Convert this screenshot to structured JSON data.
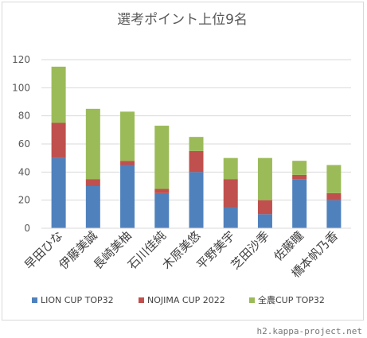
{
  "chart_data": {
    "type": "bar",
    "stacked": true,
    "title": "選考ポイント上位9名",
    "categories": [
      "早田ひな",
      "伊藤美誠",
      "長崎美柚",
      "石川佳純",
      "木原美悠",
      "平野美宇",
      "芝田沙季",
      "佐藤瞳",
      "橋本帆乃香"
    ],
    "series": [
      {
        "name": "LION CUP TOP32",
        "color": "#4f81bd",
        "values": [
          50,
          30,
          45,
          25,
          40,
          15,
          10,
          35,
          20
        ]
      },
      {
        "name": "NOJIMA CUP 2022",
        "color": "#c0504d",
        "values": [
          25,
          5,
          3,
          3,
          15,
          20,
          10,
          3,
          5
        ]
      },
      {
        "name": "全農CUP TOP32",
        "color": "#9bbb59",
        "values": [
          40,
          50,
          35,
          45,
          10,
          15,
          30,
          10,
          20
        ]
      }
    ],
    "yticks": [
      "0",
      "20",
      "40",
      "60",
      "80",
      "100",
      "120"
    ],
    "ylim": [
      0,
      120
    ],
    "grid": true,
    "legend_position": "bottom"
  },
  "watermark": "h2.kappa-project.net"
}
